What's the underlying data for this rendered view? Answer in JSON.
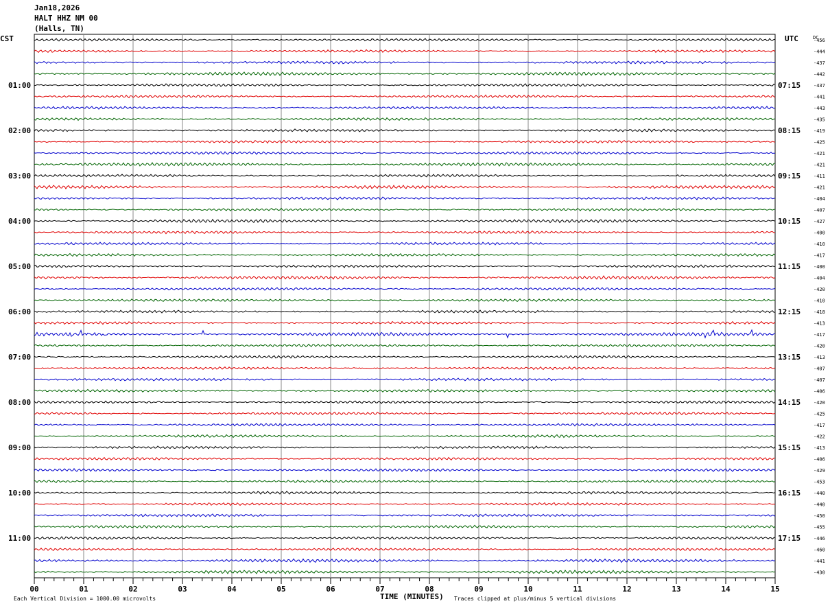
{
  "header": {
    "date": "Jan18,2026",
    "station": "HALT HHZ NM 00",
    "location": "(Halls, TN)"
  },
  "left_timezone": "CST",
  "right_timezone": "UTC",
  "dc_label": "DC",
  "footer": {
    "scale_note": "Each Vertical Division = 1000.00 microvolts",
    "xlabel": "TIME (MINUTES)",
    "clip_note": "Traces clipped at plus/minus 5 vertical divisions"
  },
  "colors": {
    "trace_cycle": [
      "#000000",
      "#e00000",
      "#0000cc",
      "#006400"
    ],
    "grid": "#888888",
    "text": "#000000"
  },
  "chart_data": {
    "type": "line",
    "title": "HALT HHZ NM 00",
    "xlabel": "TIME (MINUTES)",
    "xlim": [
      0,
      15
    ],
    "x_ticks": [
      "00",
      "01",
      "02",
      "03",
      "04",
      "05",
      "06",
      "07",
      "08",
      "09",
      "10",
      "11",
      "12",
      "13",
      "14",
      "15"
    ],
    "traces_per_hour": 4,
    "left_hour_labels": [
      "01:00",
      "02:00",
      "03:00",
      "04:00",
      "05:00",
      "06:00",
      "07:00",
      "08:00",
      "09:00",
      "10:00",
      "11:00"
    ],
    "right_hour_labels": [
      "07:15",
      "08:15",
      "09:15",
      "10:15",
      "11:15",
      "12:15",
      "13:15",
      "14:15",
      "15:15",
      "16:15",
      "17:15"
    ],
    "dc_offsets": [
      -456,
      -444,
      -437,
      -442,
      -437,
      -441,
      -443,
      -435,
      -419,
      -425,
      -421,
      -421,
      -411,
      -421,
      -404,
      -407,
      -427,
      -400,
      -410,
      -417,
      -400,
      -404,
      -420,
      -410,
      -418,
      -413,
      -417,
      -420,
      -413,
      -407,
      -407,
      -406,
      -420,
      -425,
      -417,
      -422,
      -413,
      -406,
      -429,
      -453,
      -440,
      -440,
      -450,
      -455,
      -446,
      -460,
      -441,
      -430
    ],
    "trace_activity": [
      1,
      1,
      1,
      2,
      1,
      1,
      1,
      1,
      1,
      1,
      1,
      2,
      1,
      2,
      1,
      1,
      2,
      1,
      1,
      1,
      1,
      2,
      1,
      1,
      1,
      1,
      3,
      1,
      1,
      1,
      1,
      1,
      1,
      1,
      1,
      1,
      1,
      1,
      1,
      1,
      1,
      1,
      1,
      1,
      1,
      1,
      2,
      2
    ]
  }
}
